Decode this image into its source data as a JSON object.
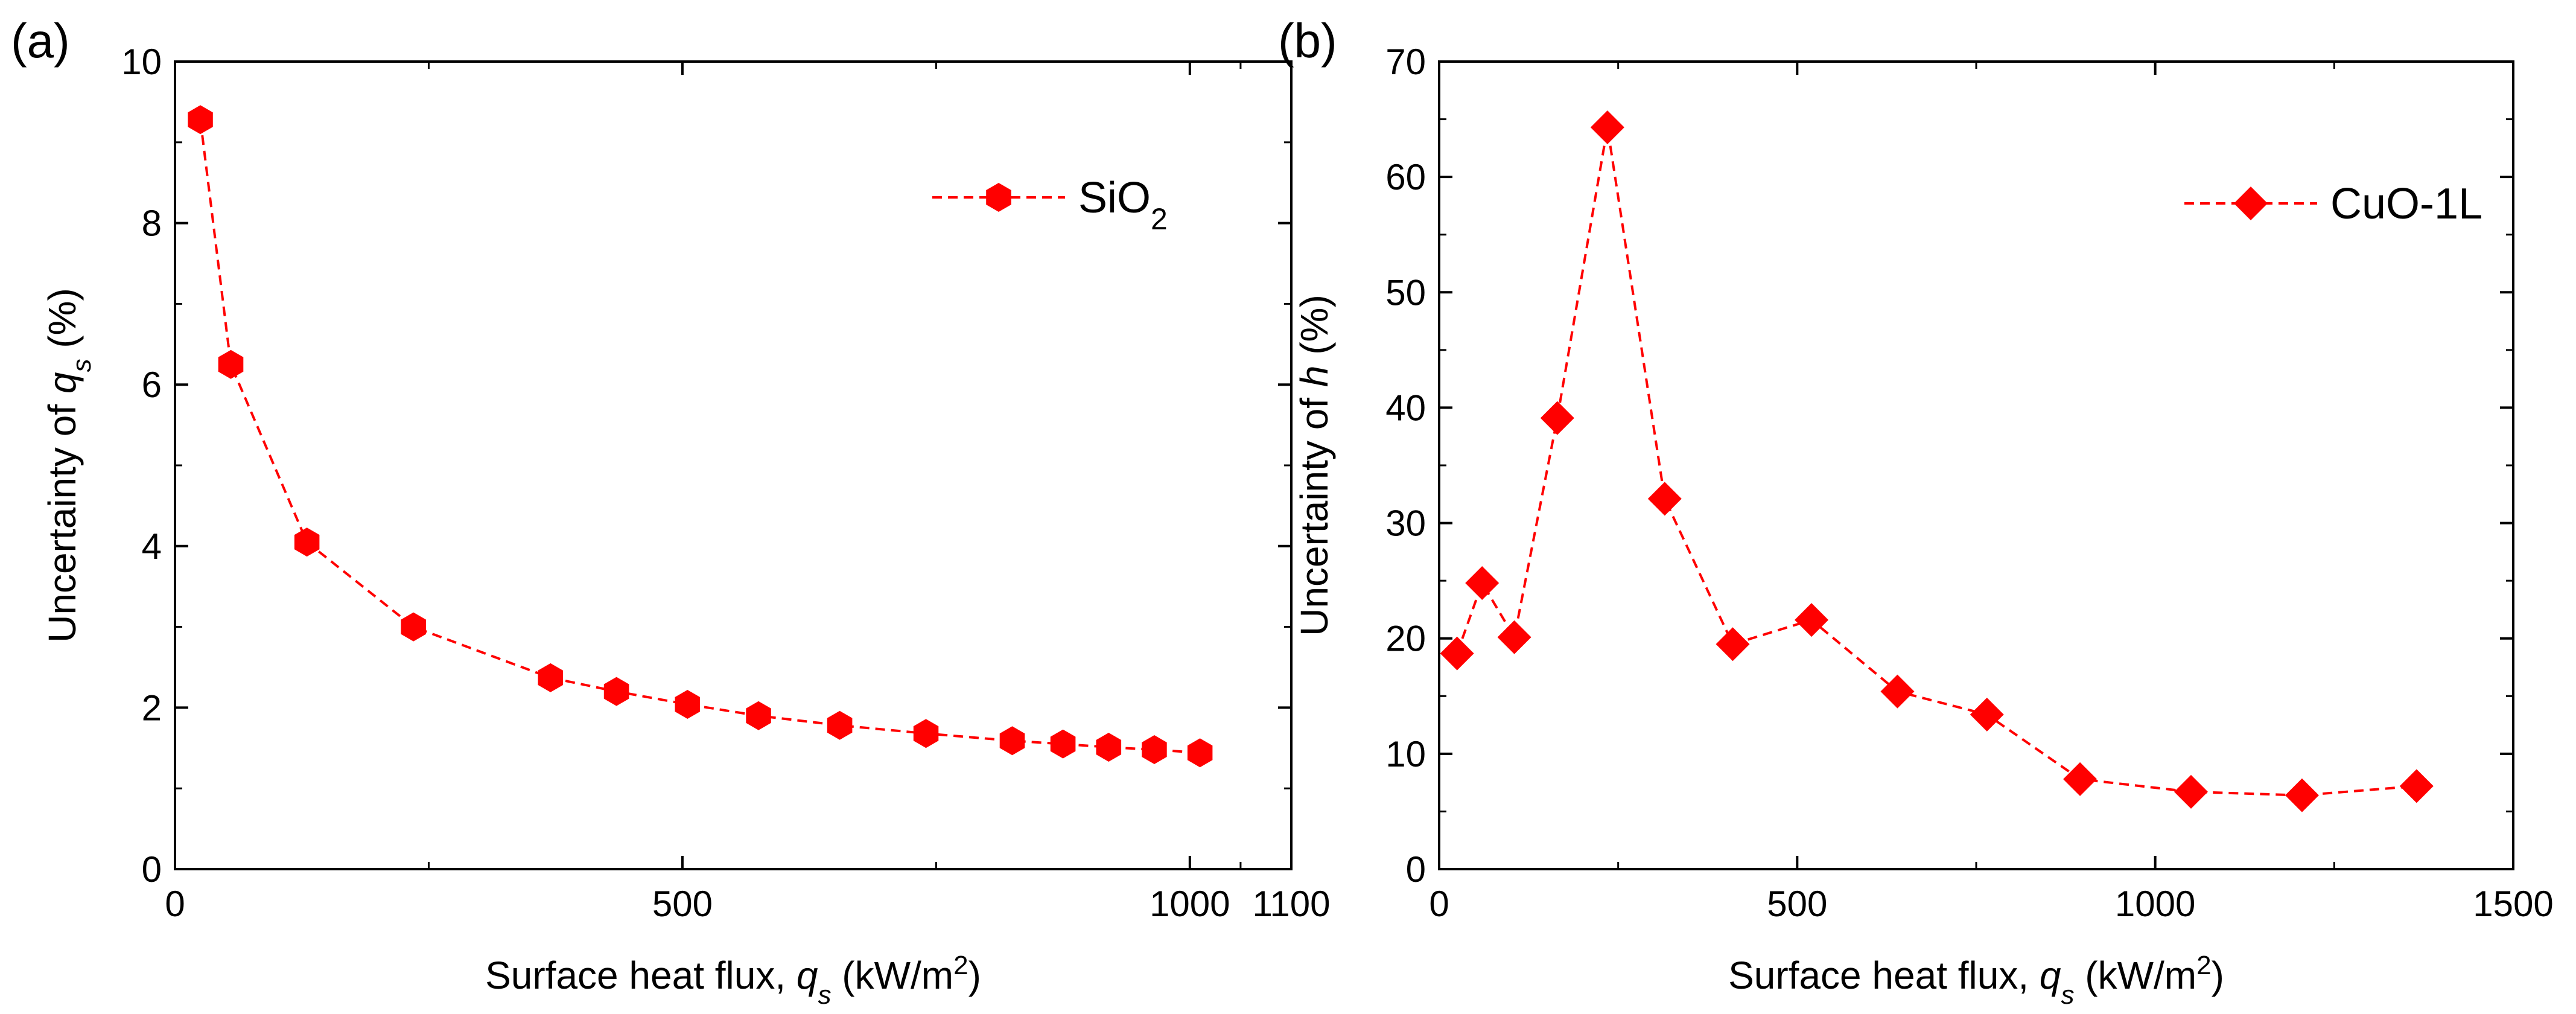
{
  "chart_data": [
    {
      "type": "line",
      "panel_label": "(a)",
      "xlabel": {
        "main": "Surface heat flux, ",
        "var": "q",
        "sub": "s",
        "unit_pre": " (kW/m",
        "unit_sup": "2",
        "unit_post": ")"
      },
      "ylabel": {
        "main": "Uncertainty of ",
        "var": "q",
        "sub": "s",
        "suffix": " (%)"
      },
      "xlim": [
        0,
        1100
      ],
      "ylim": [
        0,
        10
      ],
      "xticks": [
        0,
        500,
        1000,
        1100
      ],
      "xtick_labels": [
        "0",
        "500",
        "1000",
        "1100"
      ],
      "yticks": [
        0,
        2,
        4,
        6,
        8,
        10
      ],
      "ytick_labels": [
        "0",
        "2",
        "4",
        "6",
        "8",
        "10"
      ],
      "grid": false,
      "legend_position": "top-right",
      "colors": {
        "series": "#ff0000",
        "axis": "#000000"
      },
      "series": [
        {
          "name": "SiO",
          "name_sub": "2",
          "marker": "hexagon",
          "line_style": "dashed",
          "x": [
            25,
            55,
            130,
            235,
            370,
            435,
            505,
            575,
            655,
            740,
            825,
            875,
            920,
            965,
            1010
          ],
          "y": [
            9.28,
            6.25,
            4.05,
            3.0,
            2.37,
            2.2,
            2.04,
            1.9,
            1.78,
            1.68,
            1.59,
            1.55,
            1.51,
            1.48,
            1.44
          ]
        }
      ]
    },
    {
      "type": "line",
      "panel_label": "(b)",
      "xlabel": {
        "main": "Surface heat flux, ",
        "var": "q",
        "sub": "s",
        "unit_pre": " (kW/m",
        "unit_sup": "2",
        "unit_post": ")"
      },
      "ylabel": {
        "main": "Uncertainty of ",
        "var": "h",
        "sub": "",
        "suffix": " (%)"
      },
      "xlim": [
        0,
        1500
      ],
      "ylim": [
        0,
        70
      ],
      "xticks": [
        0,
        500,
        1000,
        1500
      ],
      "xtick_labels": [
        "0",
        "500",
        "1000",
        "1500"
      ],
      "yticks": [
        0,
        10,
        20,
        30,
        40,
        50,
        60,
        70
      ],
      "ytick_labels": [
        "0",
        "10",
        "20",
        "30",
        "40",
        "50",
        "60",
        "70"
      ],
      "grid": false,
      "legend_position": "top-right",
      "colors": {
        "series": "#ff0000",
        "axis": "#000000"
      },
      "series": [
        {
          "name": "CuO-1L",
          "name_sub": "",
          "marker": "diamond",
          "line_style": "dashed",
          "x": [
            25,
            60,
            105,
            165,
            235,
            315,
            410,
            520,
            640,
            765,
            895,
            1050,
            1205,
            1365
          ],
          "y": [
            18.7,
            24.8,
            20.1,
            39.1,
            64.3,
            32.1,
            19.5,
            21.6,
            15.4,
            13.4,
            7.8,
            6.7,
            6.4,
            7.2
          ]
        }
      ]
    }
  ]
}
